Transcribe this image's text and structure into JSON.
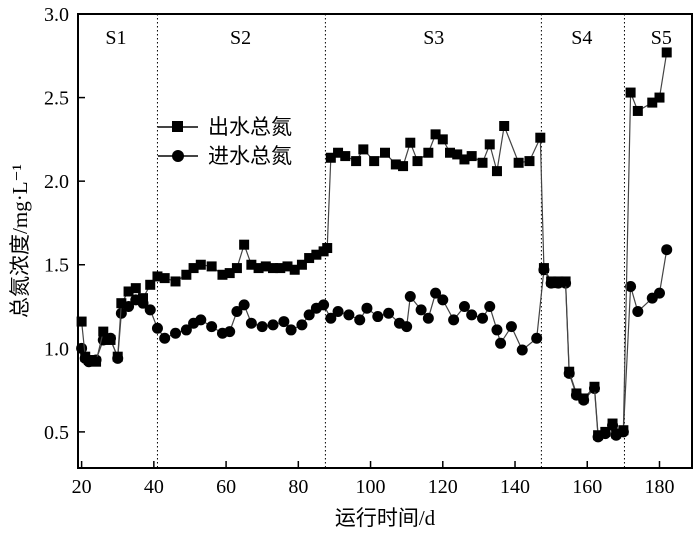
{
  "figure": {
    "y_axis_label": "总氮浓度/mg·L⁻¹",
    "x_axis_label": "运行时间/d",
    "legend": [
      {
        "label": "进水总氮",
        "marker": "square"
      },
      {
        "label": "出水总氮",
        "marker": "circle"
      }
    ],
    "colors": {
      "foreground": "#000000",
      "series_line": "#444444",
      "background": "#ffffff"
    }
  },
  "chart_data": {
    "type": "line",
    "title": "",
    "xlabel": "运行时间/d",
    "ylabel": "总氮浓度/mg·L⁻¹",
    "xlim": [
      19,
      189
    ],
    "ylim": [
      0.284,
      3.0
    ],
    "x_ticks": [
      20,
      40,
      60,
      80,
      100,
      120,
      140,
      160,
      180
    ],
    "y_ticks": [
      0.5,
      1.0,
      1.5,
      2.0,
      2.5,
      3.0
    ],
    "grid": false,
    "legend_position": "inside-upper-left",
    "phase_dividers_x": [
      41,
      87.5,
      147.3,
      170.3
    ],
    "phases": [
      {
        "label": "S1",
        "x": 29.5
      },
      {
        "label": "S2",
        "x": 64
      },
      {
        "label": "S3",
        "x": 117.5
      },
      {
        "label": "S4",
        "x": 158.5
      },
      {
        "label": "S5",
        "x": 180.5
      }
    ],
    "series": [
      {
        "name": "出水总氮",
        "marker": "circle",
        "points": [
          [
            20,
            1.0
          ],
          [
            21,
            0.94
          ],
          [
            22,
            0.92
          ],
          [
            24,
            0.93
          ],
          [
            26,
            1.05
          ],
          [
            28,
            1.06
          ],
          [
            30,
            0.94
          ],
          [
            31,
            1.21
          ],
          [
            33,
            1.25
          ],
          [
            35,
            1.29
          ],
          [
            37,
            1.27
          ],
          [
            39,
            1.23
          ],
          [
            41,
            1.12
          ],
          [
            43,
            1.06
          ],
          [
            46,
            1.09
          ],
          [
            49,
            1.11
          ],
          [
            51,
            1.15
          ],
          [
            53,
            1.17
          ],
          [
            56,
            1.13
          ],
          [
            59,
            1.09
          ],
          [
            61,
            1.1
          ],
          [
            63,
            1.22
          ],
          [
            65,
            1.26
          ],
          [
            67,
            1.15
          ],
          [
            70,
            1.13
          ],
          [
            73,
            1.14
          ],
          [
            76,
            1.16
          ],
          [
            78,
            1.11
          ],
          [
            81,
            1.14
          ],
          [
            83,
            1.2
          ],
          [
            85,
            1.24
          ],
          [
            87,
            1.26
          ],
          [
            89,
            1.18
          ],
          [
            91,
            1.22
          ],
          [
            94,
            1.2
          ],
          [
            97,
            1.17
          ],
          [
            99,
            1.24
          ],
          [
            102,
            1.19
          ],
          [
            105,
            1.21
          ],
          [
            108,
            1.15
          ],
          [
            110,
            1.13
          ],
          [
            111,
            1.31
          ],
          [
            114,
            1.23
          ],
          [
            116,
            1.18
          ],
          [
            118,
            1.33
          ],
          [
            120,
            1.29
          ],
          [
            123,
            1.17
          ],
          [
            126,
            1.25
          ],
          [
            128,
            1.2
          ],
          [
            131,
            1.18
          ],
          [
            133,
            1.25
          ],
          [
            135,
            1.11
          ],
          [
            136,
            1.03
          ],
          [
            139,
            1.13
          ],
          [
            142,
            0.99
          ],
          [
            146,
            1.06
          ],
          [
            148,
            1.47
          ],
          [
            150,
            1.39
          ],
          [
            152,
            1.39
          ],
          [
            154,
            1.39
          ],
          [
            155,
            0.85
          ],
          [
            157,
            0.72
          ],
          [
            159,
            0.69
          ],
          [
            162,
            0.76
          ],
          [
            163,
            0.47
          ],
          [
            165,
            0.49
          ],
          [
            167,
            0.54
          ],
          [
            168,
            0.48
          ],
          [
            170,
            0.5
          ],
          [
            172,
            1.37
          ],
          [
            174,
            1.22
          ],
          [
            178,
            1.3
          ],
          [
            180,
            1.33
          ],
          [
            182,
            1.59
          ]
        ]
      },
      {
        "name": "进水总氮",
        "marker": "square",
        "points": [
          [
            20,
            1.16
          ],
          [
            21,
            0.95
          ],
          [
            22,
            0.93
          ],
          [
            24,
            0.92
          ],
          [
            26,
            1.1
          ],
          [
            28,
            1.05
          ],
          [
            30,
            0.95
          ],
          [
            31,
            1.27
          ],
          [
            33,
            1.34
          ],
          [
            35,
            1.36
          ],
          [
            37,
            1.3
          ],
          [
            39,
            1.38
          ],
          [
            41,
            1.43
          ],
          [
            43,
            1.42
          ],
          [
            46,
            1.4
          ],
          [
            49,
            1.44
          ],
          [
            51,
            1.48
          ],
          [
            53,
            1.5
          ],
          [
            56,
            1.49
          ],
          [
            59,
            1.44
          ],
          [
            61,
            1.45
          ],
          [
            63,
            1.48
          ],
          [
            65,
            1.62
          ],
          [
            67,
            1.5
          ],
          [
            69,
            1.48
          ],
          [
            71,
            1.49
          ],
          [
            73,
            1.48
          ],
          [
            75,
            1.48
          ],
          [
            77,
            1.49
          ],
          [
            79,
            1.47
          ],
          [
            81,
            1.5
          ],
          [
            83,
            1.54
          ],
          [
            85,
            1.56
          ],
          [
            87,
            1.58
          ],
          [
            88,
            1.6
          ],
          [
            89,
            2.14
          ],
          [
            91,
            2.17
          ],
          [
            93,
            2.15
          ],
          [
            96,
            2.12
          ],
          [
            98,
            2.19
          ],
          [
            101,
            2.12
          ],
          [
            104,
            2.17
          ],
          [
            107,
            2.1
          ],
          [
            109,
            2.09
          ],
          [
            111,
            2.23
          ],
          [
            113,
            2.12
          ],
          [
            116,
            2.17
          ],
          [
            118,
            2.28
          ],
          [
            120,
            2.25
          ],
          [
            122,
            2.17
          ],
          [
            124,
            2.16
          ],
          [
            126,
            2.13
          ],
          [
            128,
            2.15
          ],
          [
            131,
            2.11
          ],
          [
            133,
            2.22
          ],
          [
            135,
            2.06
          ],
          [
            137,
            2.33
          ],
          [
            141,
            2.11
          ],
          [
            144,
            2.12
          ],
          [
            147,
            2.26
          ],
          [
            148,
            1.48
          ],
          [
            150,
            1.4
          ],
          [
            151,
            1.39
          ],
          [
            152,
            1.4
          ],
          [
            154,
            1.4
          ],
          [
            155,
            0.86
          ],
          [
            157,
            0.73
          ],
          [
            159,
            0.7
          ],
          [
            162,
            0.77
          ],
          [
            163,
            0.48
          ],
          [
            165,
            0.5
          ],
          [
            167,
            0.55
          ],
          [
            168,
            0.49
          ],
          [
            170,
            0.51
          ],
          [
            172,
            2.53
          ],
          [
            174,
            2.42
          ],
          [
            178,
            2.47
          ],
          [
            180,
            2.5
          ],
          [
            182,
            2.77
          ]
        ]
      }
    ]
  }
}
